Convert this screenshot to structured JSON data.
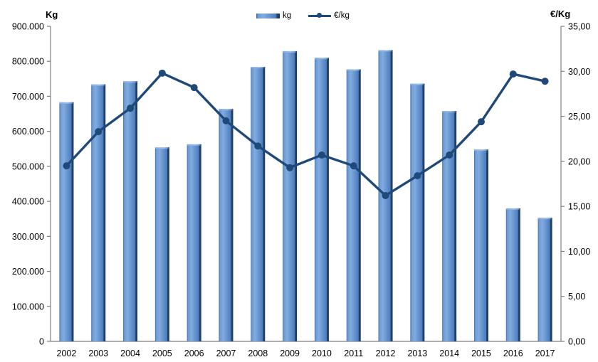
{
  "chart_data": {
    "type": "combo-bar-line",
    "categories": [
      "2002",
      "2003",
      "2004",
      "2005",
      "2006",
      "2007",
      "2008",
      "2009",
      "2010",
      "2011",
      "2012",
      "2013",
      "2014",
      "2015",
      "2016",
      "2017"
    ],
    "series": [
      {
        "name": "kg",
        "type": "bar",
        "axis": "left",
        "values": [
          683000,
          734000,
          743000,
          554000,
          563000,
          664000,
          784000,
          829000,
          810000,
          777000,
          832000,
          736000,
          658000,
          548000,
          380000,
          353000
        ]
      },
      {
        "name": "€/kg",
        "type": "line",
        "axis": "right",
        "values": [
          19.5,
          23.3,
          25.9,
          29.8,
          28.2,
          24.5,
          21.7,
          19.3,
          20.7,
          19.5,
          16.2,
          18.4,
          20.7,
          24.4,
          29.7,
          28.9
        ]
      }
    ],
    "left_axis": {
      "title": "Kg",
      "min": 0,
      "max": 900000,
      "tick_step": 100000,
      "tick_labels": [
        "900.000",
        "800.000",
        "700.000",
        "600.000",
        "500.000",
        "400.000",
        "300.000",
        "200.000",
        "100.000",
        "0"
      ]
    },
    "right_axis": {
      "title": "€/Kg",
      "min": 0,
      "max": 35,
      "tick_step": 5,
      "tick_labels": [
        "35,00",
        "30,00",
        "25,00",
        "20,00",
        "15,00",
        "10,00",
        "5,00",
        "0,00"
      ]
    },
    "legend": {
      "position": "top-center",
      "items": [
        {
          "label": "kg",
          "marker": "bar-swatch"
        },
        {
          "label": "€/kg",
          "marker": "line-marker"
        }
      ]
    },
    "grid": false,
    "colors": {
      "bar_body": "#6493CE",
      "bar_highlight": "#83ABDF",
      "bar_left_edge": "#3D6CA5",
      "bar_dark_edge": "#16355C",
      "line": "#1F4978",
      "axis_line": "#7F7F7F",
      "text": "#000000",
      "background": "#FFFFFF"
    }
  }
}
